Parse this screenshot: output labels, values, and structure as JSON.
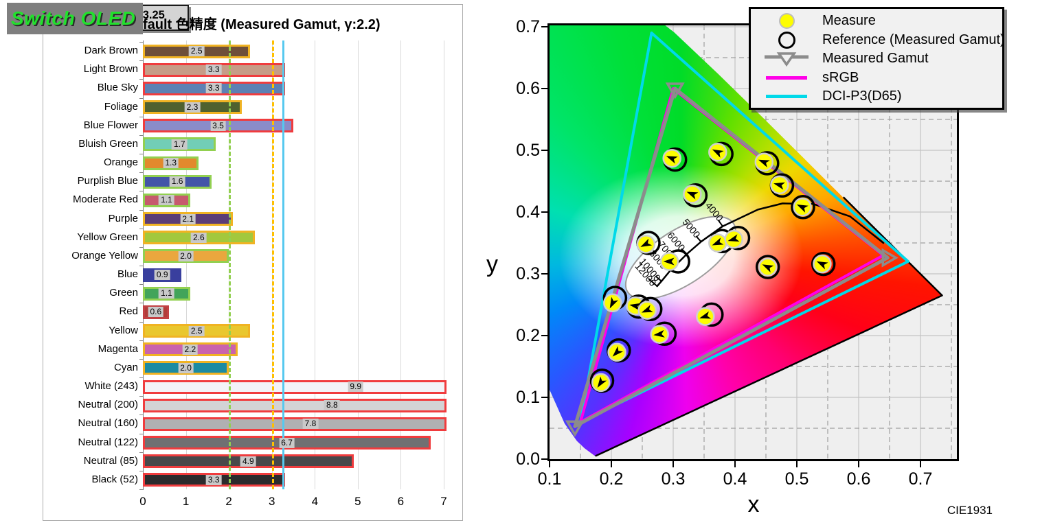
{
  "badge": {
    "label": "Switch OLED"
  },
  "chart_data": [
    {
      "type": "bar",
      "title": "Default 色精度 (Measured Gamut, γ:2.2)",
      "legend": {
        "label": "平均ΔE(00):3.25",
        "line_color": "#56c9ef"
      },
      "xlim": [
        0,
        7
      ],
      "xticks": [
        "0",
        "1",
        "2",
        "3",
        "4",
        "5",
        "6",
        "7"
      ],
      "grid": "vertical",
      "reference_lines": [
        {
          "value": 2,
          "color": "#92d050",
          "style": "dashed"
        },
        {
          "value": 3,
          "color": "#ffc000",
          "style": "dashed"
        },
        {
          "value": 3.25,
          "color": "#56c9ef",
          "style": "solid"
        }
      ],
      "bars": [
        {
          "label": "Dark Brown",
          "value": 2.5,
          "value_label": "2.5",
          "fill": "#6e4f3a",
          "border": "#f0b323"
        },
        {
          "label": "Light Brown",
          "value": 3.3,
          "value_label": "3.3",
          "fill": "#c69c87",
          "border": "#f03c3e"
        },
        {
          "label": "Blue Sky",
          "value": 3.3,
          "value_label": "3.3",
          "fill": "#5d81b4",
          "border": "#f03c3e"
        },
        {
          "label": "Foliage",
          "value": 2.3,
          "value_label": "2.3",
          "fill": "#50612f",
          "border": "#f0b323"
        },
        {
          "label": "Blue Flower",
          "value": 3.5,
          "value_label": "3.5",
          "fill": "#8a8cc9",
          "border": "#f03c3e"
        },
        {
          "label": "Bluish Green",
          "value": 1.7,
          "value_label": "1.7",
          "fill": "#72ceb6",
          "border": "#92d050"
        },
        {
          "label": "Orange",
          "value": 1.3,
          "value_label": "1.3",
          "fill": "#e2892d",
          "border": "#92d050"
        },
        {
          "label": "Purplish Blue",
          "value": 1.6,
          "value_label": "1.6",
          "fill": "#4355a8",
          "border": "#92d050"
        },
        {
          "label": "Moderate Red",
          "value": 1.1,
          "value_label": "1.1",
          "fill": "#c65a6e",
          "border": "#92d050"
        },
        {
          "label": "Purple",
          "value": 2.1,
          "value_label": "2.1",
          "fill": "#5b3d77",
          "border": "#f0b323"
        },
        {
          "label": "Yellow Green",
          "value": 2.6,
          "value_label": "2.6",
          "fill": "#a2c83d",
          "border": "#f0b323"
        },
        {
          "label": "Orange Yellow",
          "value": 2.0,
          "value_label": "2.0",
          "fill": "#eaa73e",
          "border": "#92d050"
        },
        {
          "label": "Blue",
          "value": 0.9,
          "value_label": "0.9",
          "fill": "#393f9e",
          "border": "none"
        },
        {
          "label": "Green",
          "value": 1.1,
          "value_label": "1.1",
          "fill": "#42a45a",
          "border": "#92d050"
        },
        {
          "label": "Red",
          "value": 0.6,
          "value_label": "0.6",
          "fill": "#b23c3a",
          "border": "#c24043"
        },
        {
          "label": "Yellow",
          "value": 2.5,
          "value_label": "2.5",
          "fill": "#e9c72e",
          "border": "#f0b323"
        },
        {
          "label": "Magenta",
          "value": 2.2,
          "value_label": "2.2",
          "fill": "#ca63ad",
          "border": "#f0b323"
        },
        {
          "label": "Cyan",
          "value": 2.0,
          "value_label": "2.0",
          "fill": "#1c8ba2",
          "border": "#f0b323"
        },
        {
          "label": "White (243)",
          "value": 9.9,
          "value_label": "9.9",
          "fill": "#f3f3f7",
          "border": "#f03c3e"
        },
        {
          "label": "Neutral (200)",
          "value": 8.8,
          "value_label": "8.8",
          "fill": "#d3d3d5",
          "border": "#f03c3e"
        },
        {
          "label": "Neutral (160)",
          "value": 7.8,
          "value_label": "7.8",
          "fill": "#b0b0b2",
          "border": "#f03c3e"
        },
        {
          "label": "Neutral (122)",
          "value": 6.7,
          "value_label": "6.7",
          "fill": "#707072",
          "border": "#f03c3e"
        },
        {
          "label": "Neutral (85)",
          "value": 4.9,
          "value_label": "4.9",
          "fill": "#48484a",
          "border": "#f03c3e"
        },
        {
          "label": "Black (52)",
          "value": 3.3,
          "value_label": "3.3",
          "fill": "#2b2b2d",
          "border": "#f03c3e"
        }
      ]
    },
    {
      "type": "scatter",
      "title": "CIE1931",
      "xlabel": "x",
      "ylabel": "y",
      "xlim": [
        0.1,
        0.759
      ],
      "ylim": [
        0,
        0.703
      ],
      "xticks": [
        "0.1",
        "0.2",
        "0.3",
        "0.4",
        "0.5",
        "0.6",
        "0.7"
      ],
      "yticks": [
        "0.0",
        "0.1",
        "0.2",
        "0.3",
        "0.4",
        "0.5",
        "0.6",
        "0.7"
      ],
      "legend": [
        {
          "label": "Measure",
          "marker": "yellow-dot",
          "color": "#fdfd00"
        },
        {
          "label": "Reference (Measured Gamut)",
          "marker": "open-circle",
          "color": "#000000"
        },
        {
          "label": "Measured Gamut",
          "marker": "line-open-triangle",
          "color": "#8c8c8c"
        },
        {
          "label": "sRGB",
          "marker": "line",
          "color": "#ff00e8"
        },
        {
          "label": "DCI-P3(D65)",
          "marker": "line",
          "color": "#00d9e9"
        }
      ],
      "gamuts": [
        {
          "name": "DCI-P3(D65)",
          "color": "#00d9e9",
          "width": 4,
          "markers": false,
          "vertices": [
            [
              0.68,
              0.32
            ],
            [
              0.265,
              0.69
            ],
            [
              0.15,
              0.06
            ]
          ]
        },
        {
          "name": "sRGB",
          "color": "#ff00e8",
          "width": 4,
          "markers": false,
          "vertices": [
            [
              0.64,
              0.33
            ],
            [
              0.3,
              0.6
            ],
            [
              0.15,
              0.06
            ]
          ]
        },
        {
          "name": "Measured Gamut",
          "color": "#8c8c8c",
          "width": 5,
          "markers": true,
          "vertices": [
            [
              0.647,
              0.326
            ],
            [
              0.303,
              0.6
            ],
            [
              0.141,
              0.053
            ]
          ],
          "marker_angles": [
            270,
            0,
            0
          ]
        }
      ],
      "blackbody_locus": {
        "curve": [
          [
            0.274,
            0.28
          ],
          [
            0.281,
            0.288
          ],
          [
            0.295,
            0.305
          ],
          [
            0.307,
            0.317
          ],
          [
            0.322,
            0.332
          ],
          [
            0.345,
            0.352
          ],
          [
            0.38,
            0.377
          ],
          [
            0.437,
            0.404
          ],
          [
            0.477,
            0.414
          ],
          [
            0.527,
            0.413
          ],
          [
            0.586,
            0.393
          ],
          [
            0.64,
            0.35
          ]
        ],
        "ticks": [
          {
            "label": "4000",
            "x": 0.38,
            "y": 0.377
          },
          {
            "label": "5000",
            "x": 0.345,
            "y": 0.352
          },
          {
            "label": "6000",
            "x": 0.322,
            "y": 0.332
          },
          {
            "label": "7000",
            "x": 0.307,
            "y": 0.317
          },
          {
            "label": "8000",
            "x": 0.295,
            "y": 0.305
          },
          {
            "label": "10000",
            "x": 0.281,
            "y": 0.288
          },
          {
            "label": "12000",
            "x": 0.274,
            "y": 0.28
          }
        ]
      },
      "white_ellipse": {
        "cx": 0.312,
        "cy": 0.326,
        "rx": 0.102,
        "ry": 0.044,
        "angle": -33
      },
      "points": [
        {
          "mx": 0.298,
          "my": 0.487,
          "rx": 0.303,
          "ry": 0.485
        },
        {
          "mx": 0.372,
          "my": 0.497,
          "rx": 0.378,
          "ry": 0.494
        },
        {
          "mx": 0.447,
          "my": 0.481,
          "rx": 0.452,
          "ry": 0.479
        },
        {
          "mx": 0.472,
          "my": 0.444,
          "rx": 0.476,
          "ry": 0.443
        },
        {
          "mx": 0.509,
          "my": 0.408,
          "rx": 0.51,
          "ry": 0.408
        },
        {
          "mx": 0.331,
          "my": 0.429,
          "rx": 0.336,
          "ry": 0.427
        },
        {
          "mx": 0.256,
          "my": 0.348,
          "rx": 0.26,
          "ry": 0.35
        },
        {
          "mx": 0.294,
          "my": 0.32,
          "rx": 0.308,
          "ry": 0.32
        },
        {
          "mx": 0.372,
          "my": 0.35,
          "rx": 0.379,
          "ry": 0.353
        },
        {
          "mx": 0.398,
          "my": 0.356,
          "rx": 0.405,
          "ry": 0.358
        },
        {
          "mx": 0.453,
          "my": 0.311,
          "rx": 0.453,
          "ry": 0.311
        },
        {
          "mx": 0.541,
          "my": 0.316,
          "rx": 0.543,
          "ry": 0.316
        },
        {
          "mx": 0.202,
          "my": 0.253,
          "rx": 0.206,
          "ry": 0.261
        },
        {
          "mx": 0.239,
          "my": 0.248,
          "rx": 0.244,
          "ry": 0.247
        },
        {
          "mx": 0.258,
          "my": 0.241,
          "rx": 0.263,
          "ry": 0.243
        },
        {
          "mx": 0.352,
          "my": 0.231,
          "rx": 0.362,
          "ry": 0.234
        },
        {
          "mx": 0.278,
          "my": 0.202,
          "rx": 0.286,
          "ry": 0.203
        },
        {
          "mx": 0.209,
          "my": 0.173,
          "rx": 0.212,
          "ry": 0.176
        },
        {
          "mx": 0.183,
          "my": 0.124,
          "rx": 0.185,
          "ry": 0.127
        }
      ]
    }
  ]
}
